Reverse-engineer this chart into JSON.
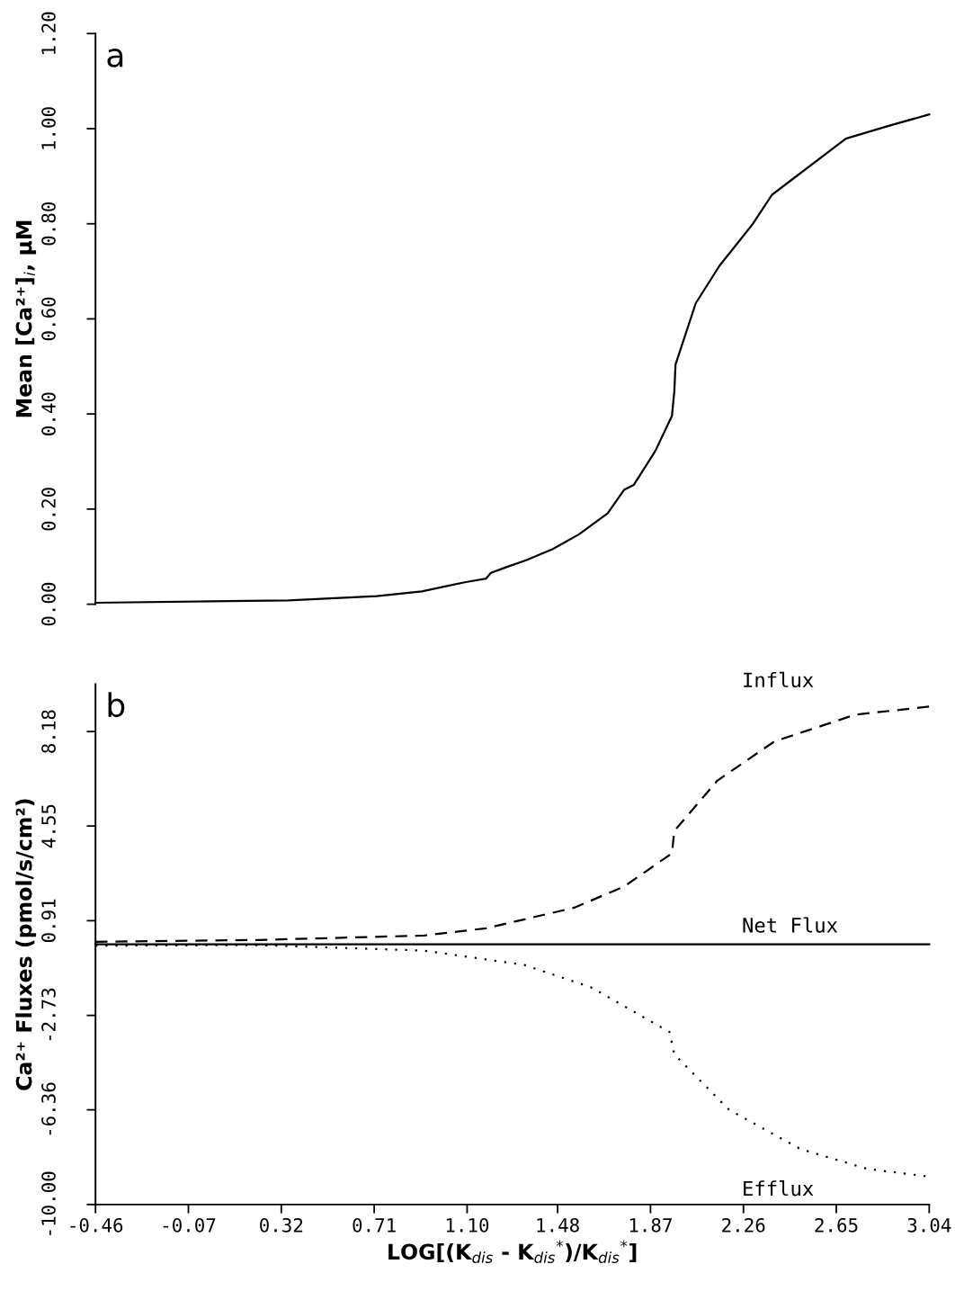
{
  "chart_data": [
    {
      "type": "line",
      "ylabel": "Mean [Ca²⁺]$_{i}$, µM",
      "annotations": [
        "a"
      ],
      "tick_labels": "y",
      "grid": false,
      "legend": false,
      "xlim": [
        -0.46,
        3.04
      ],
      "ylim": [
        0,
        1.2
      ],
      "yticks": [
        {
          "value": 0,
          "label": "0.00"
        },
        {
          "value": 0.2,
          "label": "0.20"
        },
        {
          "value": 0.4,
          "label": "0.40"
        },
        {
          "value": 0.6,
          "label": "0.60"
        },
        {
          "value": 0.8,
          "label": "0.80"
        },
        {
          "value": 1.0,
          "label": "1.00"
        },
        {
          "value": 1.2,
          "label": "1.20"
        }
      ],
      "series": [
        {
          "color": "#000000",
          "line_style": "solid",
          "x": [
            -0.46,
            0.35,
            0.72,
            0.91,
            1.09,
            1.18,
            1.2,
            1.26,
            1.35,
            1.46,
            1.57,
            1.69,
            1.76,
            1.8,
            1.89,
            1.96,
            1.97,
            1.975,
            2.06,
            2.16,
            2.3,
            2.38,
            2.69,
            2.87,
            3.04
          ],
          "values": [
            0.003,
            0.008,
            0.017,
            0.027,
            0.046,
            0.054,
            0.066,
            0.077,
            0.093,
            0.116,
            0.147,
            0.191,
            0.241,
            0.251,
            0.322,
            0.396,
            0.448,
            0.504,
            0.633,
            0.712,
            0.8,
            0.861,
            0.979,
            1.006,
            1.03
          ]
        }
      ]
    },
    {
      "type": "line",
      "xlabel": "LOG[(K$_{dis}$ - K$_{dis}$$^{*}$)/K$_{dis}$$^{*}$]",
      "ylabel": "Ca²⁺ Fluxes (pmol/s/cm²)",
      "annotations": [
        "b"
      ],
      "grid": false,
      "legend": false,
      "xlim": [
        -0.46,
        3.04
      ],
      "ylim": [
        -10,
        10
      ],
      "xticks": [
        -0.46,
        -0.07,
        0.32,
        0.71,
        {
          "value": 1.1,
          "label": "1.10"
        },
        1.48,
        1.87,
        2.26,
        2.65,
        3.04
      ],
      "yticks": [
        {
          "value": -10,
          "label": "-10.00"
        },
        -6.36,
        -2.73,
        0.91,
        4.55,
        8.18
      ],
      "series": [
        {
          "name": "Influx",
          "color": "#000000",
          "line_style": "dashed",
          "x": [
            -0.46,
            0.23,
            0.92,
            1.18,
            1.55,
            1.76,
            1.96,
            1.97,
            2.15,
            2.39,
            2.73,
            3.04
          ],
          "values": [
            0.1,
            0.17,
            0.34,
            0.62,
            1.41,
            2.23,
            3.5,
            4.36,
            6.29,
            7.8,
            8.83,
            9.14
          ]
        },
        {
          "name": "Net Flux",
          "color": "#000000",
          "line_style": "solid",
          "x": [
            -0.46,
            3.04
          ],
          "values": [
            0,
            0
          ]
        },
        {
          "name": "Efflux",
          "color": "#000000",
          "line_style": "dotted",
          "x": [
            -0.46,
            0.23,
            0.92,
            1.34,
            1.62,
            1.95,
            1.97,
            2.2,
            2.5,
            2.78,
            3.04
          ],
          "values": [
            -0.05,
            -0.03,
            -0.24,
            -0.79,
            -1.65,
            -3.37,
            -4.23,
            -6.36,
            -7.87,
            -8.63,
            -8.93
          ]
        }
      ]
    }
  ]
}
